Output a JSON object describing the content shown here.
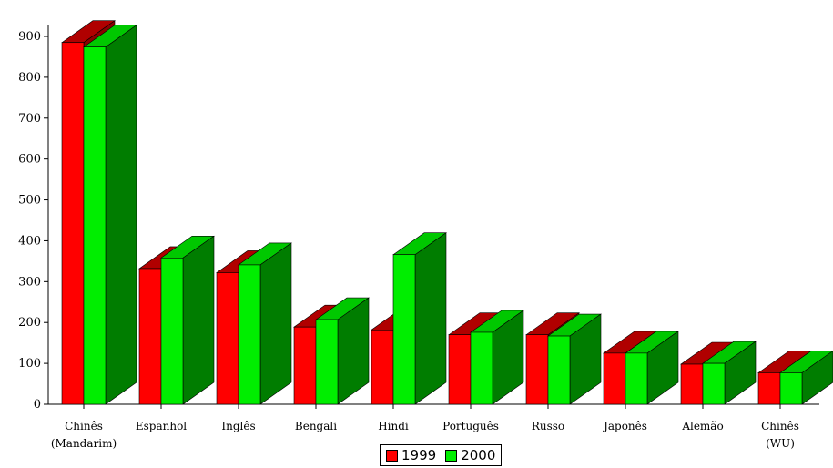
{
  "chart_data": {
    "type": "bar",
    "title": "",
    "xlabel": "",
    "ylabel": "",
    "ylim": [
      0,
      900
    ],
    "yticks": [
      0,
      100,
      200,
      300,
      400,
      500,
      600,
      700,
      800,
      900
    ],
    "grid": false,
    "legend_position": "bottom-center",
    "categories": [
      [
        "Chinês",
        "(Mandarim)"
      ],
      [
        "Espanhol"
      ],
      [
        "Inglês"
      ],
      [
        "Bengali"
      ],
      [
        "Hindi"
      ],
      [
        "Português"
      ],
      [
        "Russo"
      ],
      [
        "Japonês"
      ],
      [
        "Alemão"
      ],
      [
        "Chinês",
        "(WU)"
      ]
    ],
    "series": [
      {
        "name": "1999",
        "color": "#ff0000",
        "side": "#8b0000",
        "top": "#b00000",
        "values": [
          885,
          332,
          322,
          189,
          182,
          170,
          170,
          125,
          98,
          77
        ]
      },
      {
        "name": "2000",
        "color": "#00ee00",
        "side": "#007d00",
        "top": "#00c800",
        "values": [
          874,
          358,
          341,
          207,
          366,
          176,
          167,
          125,
          100,
          77
        ]
      }
    ]
  }
}
